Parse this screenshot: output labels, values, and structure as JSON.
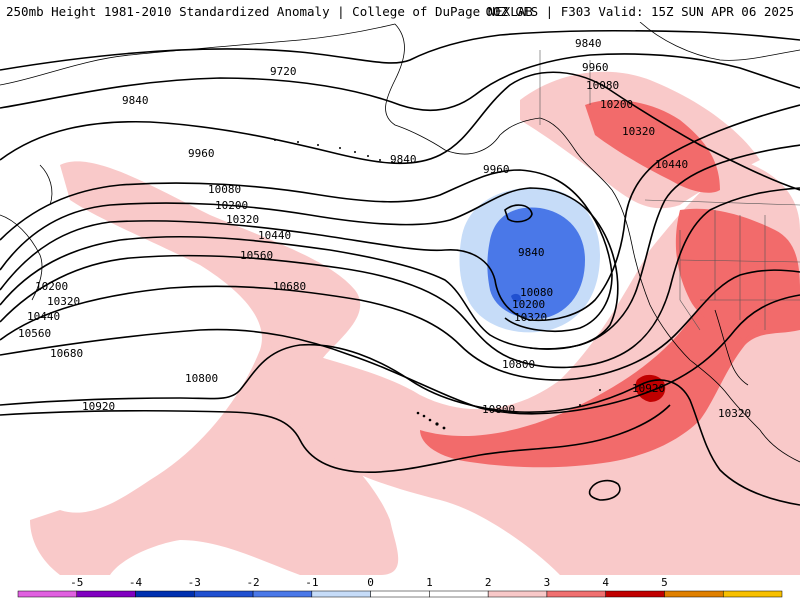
{
  "header": {
    "title_left": "250mb Height 1981-2010 Standardized Anomaly | College of DuPage NEXLAB",
    "title_right": "00Z GFS | F303 Valid: 15Z SUN APR 06 2025"
  },
  "contour_labels": [
    "9720",
    "9840",
    "9840",
    "9840",
    "9960",
    "9960",
    "9960",
    "10080",
    "10080",
    "10080",
    "10200",
    "10200",
    "10200",
    "10320",
    "10320",
    "10320",
    "10440",
    "10440",
    "10560",
    "10560",
    "10680",
    "10680",
    "10800",
    "10800",
    "10800",
    "10920",
    "10920",
    "10320",
    "10440",
    "10320",
    "10200",
    "9840"
  ],
  "colorbar": {
    "ticks": [
      "-5",
      "-4",
      "-3",
      "-2",
      "-1",
      "0",
      "1",
      "2",
      "3",
      "4",
      "5"
    ],
    "colors": [
      "#e060e0",
      "#8000c0",
      "#0030b0",
      "#2050d0",
      "#4a78e8",
      "#c6dcf8",
      "#ffffff",
      "#ffffff",
      "#f8c8c8",
      "#f07070",
      "#c00000",
      "#e08000",
      "#f8c000"
    ]
  },
  "anomaly_colors": {
    "weak_positive": "#f9c9c9",
    "moderate_positive": "#f26b6b",
    "strong_positive": "#c00000",
    "weak_negative": "#c6dcf8",
    "moderate_negative": "#4a78e8"
  }
}
